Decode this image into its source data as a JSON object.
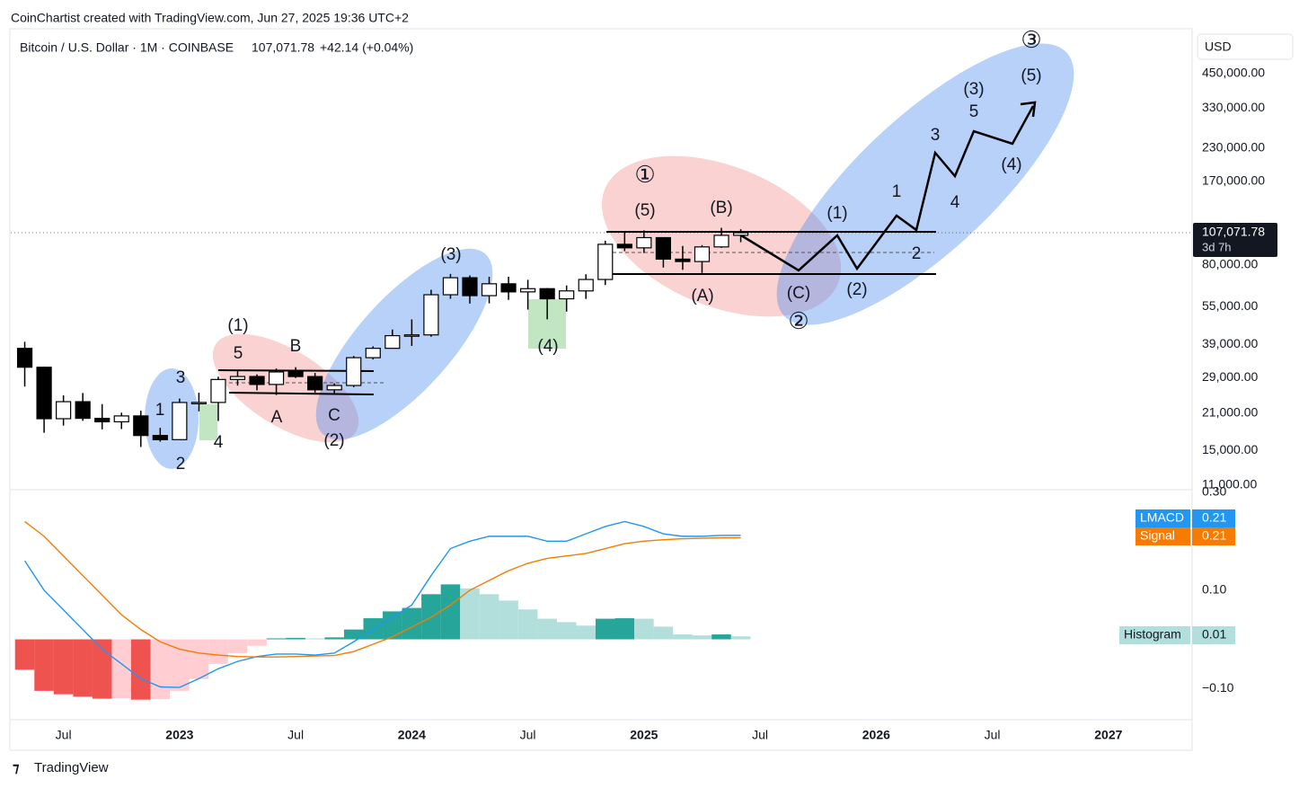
{
  "header": {
    "credit": "CoinChartist created with TradingView.com, Jun 27, 2025 19:36 UTC+2",
    "symbol": "Bitcoin / U.S. Dollar · 1M · COINBASE",
    "price": "107,071.78",
    "change": "+42.14 (+0.04%)",
    "currency": "USD",
    "price_tag": "107,071.78",
    "countdown": "3d 7h",
    "brand": "TradingView"
  },
  "chart_data": [
    {
      "type": "candlestick",
      "log": true,
      "x": [
        "2022-05",
        "2022-06",
        "2022-07",
        "2022-08",
        "2022-09",
        "2022-10",
        "2022-11",
        "2022-12",
        "2023-01",
        "2023-02",
        "2023-03",
        "2023-04",
        "2023-05",
        "2023-06",
        "2023-07",
        "2023-08",
        "2023-09",
        "2023-10",
        "2023-11",
        "2023-12",
        "2024-01",
        "2024-02",
        "2024-03",
        "2024-04",
        "2024-05",
        "2024-06",
        "2024-07",
        "2024-08",
        "2024-09",
        "2024-10",
        "2024-11",
        "2024-12",
        "2025-01",
        "2025-02",
        "2025-03",
        "2025-04",
        "2025-05",
        "2025-06"
      ],
      "open": [
        37700,
        31800,
        19980,
        23300,
        20050,
        19430,
        20490,
        17170,
        16540,
        23130,
        23140,
        28470,
        29250,
        27220,
        30470,
        29230,
        25940,
        26970,
        34660,
        37720,
        42280,
        42580,
        61180,
        71330,
        60670,
        67540,
        62770,
        64620,
        58980,
        63330,
        70220,
        96450,
        93430,
        102430,
        84370,
        82550,
        94210,
        104600
      ],
      "high": [
        40000,
        31990,
        24670,
        25200,
        22800,
        21100,
        21480,
        18400,
        23960,
        25250,
        29200,
        31000,
        29820,
        31430,
        31800,
        30200,
        27480,
        35200,
        38420,
        44700,
        48970,
        64000,
        73800,
        72800,
        71950,
        71980,
        70000,
        65000,
        66500,
        73600,
        99600,
        108300,
        109350,
        102500,
        95000,
        95750,
        111900,
        110500
      ],
      "low": [
        26700,
        17600,
        18780,
        19600,
        18150,
        18200,
        15480,
        16250,
        16500,
        21350,
        19570,
        26940,
        25810,
        24750,
        28860,
        25300,
        24900,
        26550,
        34100,
        37620,
        38520,
        41880,
        59000,
        56500,
        56600,
        58400,
        53500,
        49000,
        52550,
        58900,
        66800,
        90700,
        89200,
        78200,
        76600,
        74500,
        93400,
        98300
      ],
      "close": [
        31800,
        19980,
        23300,
        20050,
        19430,
        20490,
        17170,
        16540,
        23130,
        23140,
        28470,
        29250,
        27220,
        30470,
        29230,
        25940,
        26970,
        34660,
        37720,
        42280,
        42580,
        61180,
        71330,
        60670,
        67540,
        62770,
        64620,
        58980,
        63330,
        70220,
        96450,
        93430,
        102430,
        84370,
        82550,
        94210,
        104600,
        107071.78
      ],
      "xlim": [
        "2022-04",
        "2027-05"
      ],
      "xticks": [
        {
          "value": "2022-07",
          "label": "Jul"
        },
        {
          "value": "2023-01",
          "label": "2023"
        },
        {
          "value": "2023-07",
          "label": "Jul"
        },
        {
          "value": "2024-01",
          "label": "2024"
        },
        {
          "value": "2024-07",
          "label": "Jul"
        },
        {
          "value": "2025-01",
          "label": "2025"
        },
        {
          "value": "2025-07",
          "label": "Jul"
        },
        {
          "value": "2026-01",
          "label": "2026"
        },
        {
          "value": "2026-07",
          "label": "Jul"
        },
        {
          "value": "2027-01",
          "label": "2027"
        }
      ],
      "ylim": [
        10700,
        675000
      ],
      "yticks": [
        {
          "value": 450000,
          "label": "450,000.00"
        },
        {
          "value": 330000,
          "label": "330,000.00"
        },
        {
          "value": 230000,
          "label": "230,000.00"
        },
        {
          "value": 170000,
          "label": "170,000.00"
        },
        {
          "value": 80000,
          "label": "80,000.00"
        },
        {
          "value": 55000,
          "label": "55,000.00"
        },
        {
          "value": 39000,
          "label": "39,000.00"
        },
        {
          "value": 29000,
          "label": "29,000.00"
        },
        {
          "value": 21000,
          "label": "21,000.00"
        },
        {
          "value": 15000,
          "label": "15,000.00"
        },
        {
          "value": 11000,
          "label": "11,000.00"
        }
      ],
      "annotations": [
        "3",
        "1",
        "2",
        "4",
        "(1)",
        "5",
        "B",
        "A",
        "C",
        "(2)",
        "(3)",
        "(4)",
        "①",
        "(5)",
        "(B)",
        "(A)",
        "(C)",
        "②",
        "(1)",
        "(2)",
        "2",
        "1",
        "4",
        "3",
        "(4)",
        "(3)",
        "5",
        "(5)",
        "③"
      ]
    },
    {
      "type": "macd",
      "x": [
        "2022-05",
        "2022-06",
        "2022-07",
        "2022-08",
        "2022-09",
        "2022-10",
        "2022-11",
        "2022-12",
        "2023-01",
        "2023-02",
        "2023-03",
        "2023-04",
        "2023-05",
        "2023-06",
        "2023-07",
        "2023-08",
        "2023-09",
        "2023-10",
        "2023-11",
        "2023-12",
        "2024-01",
        "2024-02",
        "2024-03",
        "2024-04",
        "2024-05",
        "2024-06",
        "2024-07",
        "2024-08",
        "2024-09",
        "2024-10",
        "2024-11",
        "2024-12",
        "2025-01",
        "2025-02",
        "2025-03",
        "2025-04",
        "2025-05",
        "2025-06"
      ],
      "series": [
        {
          "name": "LMACD",
          "color": "#2196f3",
          "last_label": "0.21",
          "values": [
            0.16,
            0.1,
            0.06,
            0.02,
            -0.02,
            -0.05,
            -0.08,
            -0.097,
            -0.098,
            -0.08,
            -0.06,
            -0.045,
            -0.035,
            -0.03,
            -0.03,
            -0.032,
            -0.028,
            -0.005,
            0.02,
            0.045,
            0.07,
            0.13,
            0.185,
            0.2,
            0.21,
            0.21,
            0.21,
            0.2,
            0.2,
            0.215,
            0.23,
            0.24,
            0.23,
            0.215,
            0.21,
            0.21,
            0.212,
            0.212
          ]
        },
        {
          "name": "Signal",
          "color": "#f57c00",
          "last_label": "0.21",
          "values": [
            0.24,
            0.21,
            0.17,
            0.13,
            0.09,
            0.05,
            0.02,
            -0.005,
            -0.02,
            -0.028,
            -0.032,
            -0.035,
            -0.036,
            -0.036,
            -0.035,
            -0.034,
            -0.033,
            -0.025,
            -0.01,
            0.005,
            0.025,
            0.045,
            0.07,
            0.1,
            0.12,
            0.14,
            0.155,
            0.165,
            0.17,
            0.175,
            0.185,
            0.195,
            0.2,
            0.203,
            0.205,
            0.206,
            0.207,
            0.207
          ]
        },
        {
          "name": "Histogram",
          "colors": [
            "#ef5350",
            "#ffcdd2",
            "#26a69a",
            "#b2dfdb"
          ],
          "last_label": "0.01",
          "values": [
            -0.062,
            -0.105,
            -0.112,
            -0.117,
            -0.121,
            -0.12,
            -0.123,
            -0.122,
            -0.105,
            -0.081,
            -0.05,
            -0.028,
            -0.013,
            0.002,
            0.003,
            0.002,
            0.004,
            0.02,
            0.043,
            0.057,
            0.064,
            0.092,
            0.112,
            0.104,
            0.092,
            0.079,
            0.061,
            0.042,
            0.035,
            0.028,
            0.042,
            0.043,
            0.042,
            0.026,
            0.01,
            0.008,
            0.01,
            0.006
          ]
        }
      ],
      "ylim": [
        -0.162,
        0.305
      ],
      "yticks": [
        {
          "value": 0.3,
          "label": "0.30"
        },
        {
          "value": 0.1,
          "label": "0.10"
        },
        {
          "value": -0.1,
          "label": "−0.10"
        }
      ]
    }
  ]
}
